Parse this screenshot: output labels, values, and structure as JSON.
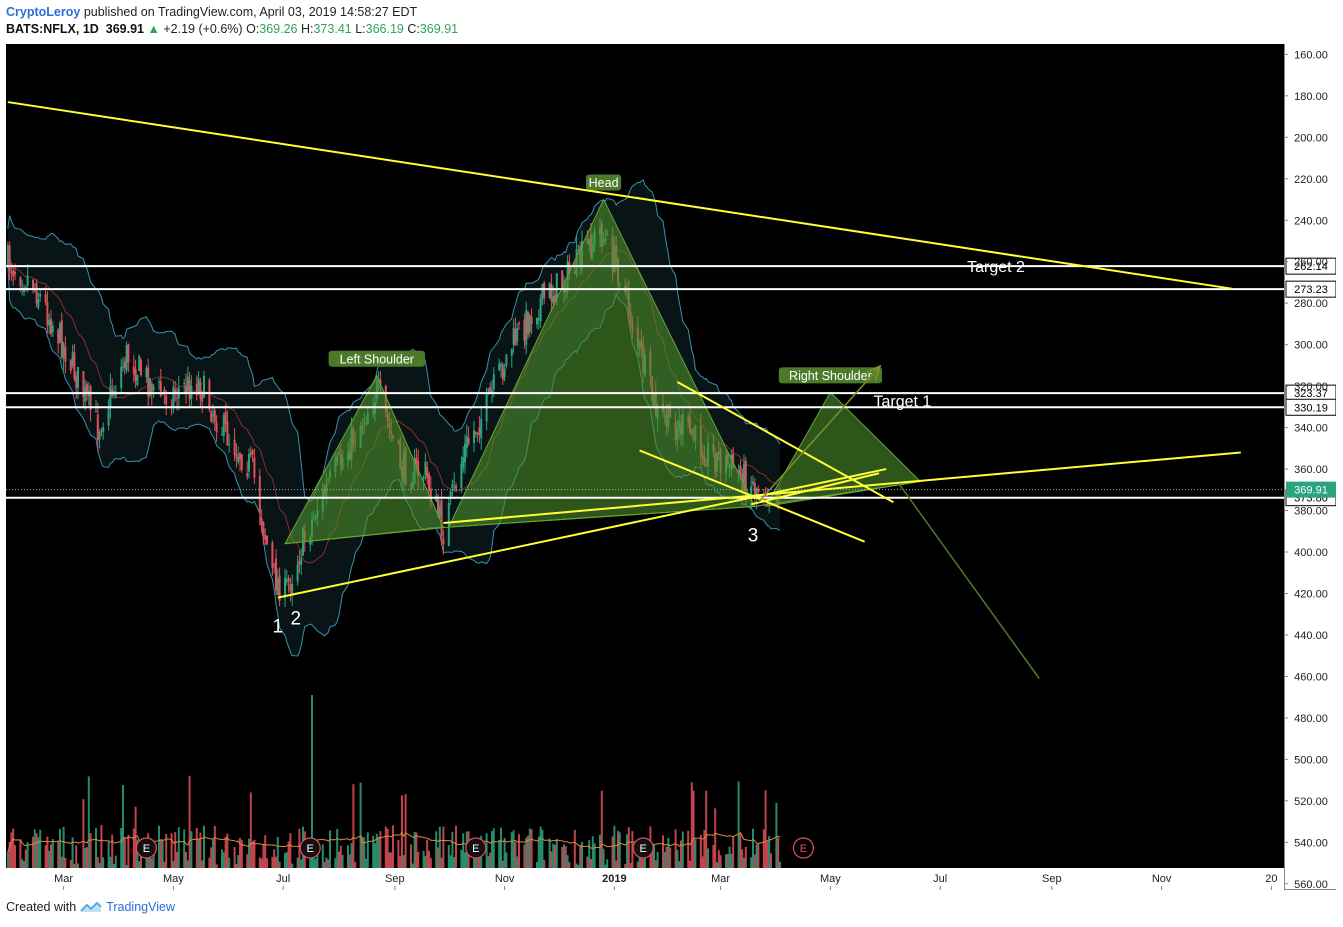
{
  "header": {
    "author": "CryptoLeroy",
    "published_text": "published on TradingView.com, April 03, 2019 14:58:27 EDT",
    "symbol": "BATS:NFLX, 1D",
    "price": "369.91",
    "change": "+2.19 (+0.6%)",
    "open_label": "O:",
    "open": "369.26",
    "high_label": "H:",
    "high": "373.41",
    "low_label": "L:",
    "low": "366.19",
    "close_label": "C:",
    "close": "369.91"
  },
  "footer": {
    "created_with": "Created with",
    "brand": "TradingView"
  },
  "colors": {
    "background": "#000000",
    "bull": "#2aa37e",
    "bear": "#e0505a",
    "trendline": "#ffff33",
    "pattern_fill": "#4d8f2c",
    "level_line": "#ffffff",
    "axis_text": "#222222"
  },
  "chart_data": {
    "type": "candlestick",
    "y_axis": {
      "inverted": true,
      "range": [
        155,
        563
      ],
      "ticks": [
        "160.00",
        "180.00",
        "200.00",
        "220.00",
        "240.00",
        "260.00",
        "280.00",
        "300.00",
        "320.00",
        "340.00",
        "360.00",
        "380.00",
        "400.00",
        "420.00",
        "440.00",
        "460.00",
        "480.00",
        "500.00",
        "520.00",
        "540.00",
        "560.00"
      ]
    },
    "x_axis": {
      "ticks": [
        {
          "label": "Mar",
          "date": "2018-03-01"
        },
        {
          "label": "May",
          "date": "2018-05-01"
        },
        {
          "label": "Jul",
          "date": "2018-07-01"
        },
        {
          "label": "Sep",
          "date": "2018-09-01"
        },
        {
          "label": "Nov",
          "date": "2018-11-01"
        },
        {
          "label": "2019",
          "date": "2019-01-01"
        },
        {
          "label": "Mar",
          "date": "2019-03-01"
        },
        {
          "label": "May",
          "date": "2019-05-01"
        },
        {
          "label": "Jul",
          "date": "2019-07-01"
        },
        {
          "label": "Sep",
          "date": "2019-09-01"
        },
        {
          "label": "Nov",
          "date": "2019-11-01"
        },
        {
          "label": "20",
          "date": "2020-01-01"
        }
      ]
    },
    "price_anchors": [
      [
        "2018-01-29",
        260
      ],
      [
        "2018-02-12",
        270
      ],
      [
        "2018-03-01",
        300
      ],
      [
        "2018-03-20",
        340
      ],
      [
        "2018-04-05",
        305
      ],
      [
        "2018-04-25",
        325
      ],
      [
        "2018-05-15",
        318
      ],
      [
        "2018-05-28",
        340
      ],
      [
        "2018-06-14",
        360
      ],
      [
        "2018-06-25",
        410
      ],
      [
        "2018-07-02",
        420
      ],
      [
        "2018-07-11",
        398
      ],
      [
        "2018-07-20",
        378
      ],
      [
        "2018-08-06",
        350
      ],
      [
        "2018-08-22",
        322
      ],
      [
        "2018-09-05",
        360
      ],
      [
        "2018-09-18",
        362
      ],
      [
        "2018-09-28",
        390
      ],
      [
        "2018-10-10",
        350
      ],
      [
        "2018-10-22",
        330
      ],
      [
        "2018-11-05",
        300
      ],
      [
        "2018-11-20",
        280
      ],
      [
        "2018-12-03",
        270
      ],
      [
        "2018-12-12",
        260
      ],
      [
        "2018-12-24",
        245
      ],
      [
        "2019-01-04",
        265
      ],
      [
        "2019-01-14",
        300
      ],
      [
        "2019-01-25",
        335
      ],
      [
        "2019-02-08",
        340
      ],
      [
        "2019-02-22",
        352
      ],
      [
        "2019-03-06",
        358
      ],
      [
        "2019-03-20",
        368
      ],
      [
        "2019-04-03",
        370
      ]
    ],
    "bollinger_band": {
      "visible": true
    },
    "volume": {
      "visible": true,
      "max_bar_date": "2018-07-17"
    },
    "earnings_markers": [
      "2018-04-16",
      "2018-07-16",
      "2018-10-16",
      "2019-01-17",
      "2019-04-16"
    ],
    "earnings_label": "E",
    "price_levels": [
      {
        "value": 262.14,
        "label": "262.14"
      },
      {
        "value": 273.23,
        "label": "273.23"
      },
      {
        "value": 323.37,
        "label": "323.37"
      },
      {
        "value": 330.19,
        "label": "330.19"
      },
      {
        "value": 373.8,
        "label": "373.80"
      }
    ],
    "last_price": {
      "value": 369.91,
      "label": "369.91"
    },
    "pattern": {
      "left_shoulder": {
        "label": "Left Shoulder",
        "left": [
          "2018-07-02",
          396
        ],
        "top": [
          "2018-08-22",
          315
        ],
        "right": [
          "2018-09-28",
          388
        ]
      },
      "head": {
        "label": "Head",
        "left": [
          "2018-10-01",
          388
        ],
        "top": [
          "2018-12-26",
          230
        ],
        "right": [
          "2019-03-20",
          378
        ]
      },
      "right_shoulder": {
        "label": "Right Shoulder",
        "left": [
          "2019-03-26",
          378
        ],
        "top": [
          "2019-05-01",
          323
        ],
        "right": [
          "2019-06-20",
          366
        ]
      }
    },
    "trendlines": [
      {
        "from": [
          "2018-01-29",
          183
        ],
        "to": [
          "2019-12-10",
          273
        ]
      },
      {
        "from": [
          "2018-06-28",
          422
        ],
        "to": [
          "2019-06-01",
          360
        ]
      },
      {
        "from": [
          "2018-09-28",
          386
        ],
        "to": [
          "2019-12-15",
          352
        ]
      },
      {
        "from": [
          "2019-02-05",
          318
        ],
        "to": [
          "2019-06-05",
          376
        ]
      },
      {
        "from": [
          "2019-01-15",
          351
        ],
        "to": [
          "2019-05-20",
          395
        ]
      },
      {
        "from": [
          "2019-03-18",
          377
        ],
        "to": [
          "2019-05-28",
          362
        ]
      }
    ],
    "projections": [
      {
        "from": [
          "2019-03-22",
          376
        ],
        "to": [
          "2019-05-28",
          311
        ],
        "arrow": true
      },
      {
        "from": [
          "2019-06-08",
          367
        ],
        "to": [
          "2019-08-25",
          461
        ],
        "arrow": false
      }
    ],
    "annotations": [
      {
        "text": "Target 2",
        "date": "2019-08-01",
        "price": 262
      },
      {
        "text": "Target 1",
        "date": "2019-06-10",
        "price": 327
      },
      {
        "text": "1",
        "date": "2018-06-28",
        "price": 436
      },
      {
        "text": "2",
        "date": "2018-07-08",
        "price": 432
      },
      {
        "text": "3",
        "date": "2019-03-19",
        "price": 392
      }
    ]
  }
}
